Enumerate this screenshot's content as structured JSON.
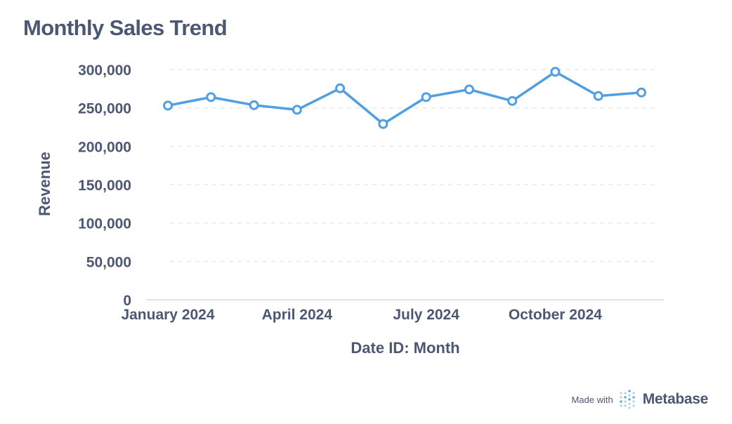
{
  "title": "Monthly Sales Trend",
  "chart_data": {
    "type": "line",
    "title": "Monthly Sales Trend",
    "xlabel": "Date ID: Month",
    "ylabel": "Revenue",
    "x": [
      "2024-01",
      "2024-02",
      "2024-03",
      "2024-04",
      "2024-05",
      "2024-06",
      "2024-07",
      "2024-08",
      "2024-09",
      "2024-10",
      "2024-11",
      "2024-12"
    ],
    "x_tick_labels": [
      {
        "x": "2024-01",
        "label": "January 2024"
      },
      {
        "x": "2024-04",
        "label": "April 2024"
      },
      {
        "x": "2024-07",
        "label": "July 2024"
      },
      {
        "x": "2024-10",
        "label": "October 2024"
      }
    ],
    "series": [
      {
        "values": [
          253000,
          264000,
          253500,
          247500,
          275500,
          229000,
          264000,
          274000,
          259000,
          297000,
          265500,
          270000
        ],
        "color": "#509ee3"
      }
    ],
    "ylim": [
      0,
      300000
    ],
    "y_ticks": [
      0,
      50000,
      100000,
      150000,
      200000,
      250000,
      300000
    ],
    "y_tick_labels": [
      "0",
      "50,000",
      "100,000",
      "150,000",
      "200,000",
      "250,000",
      "300,000"
    ],
    "grid": true,
    "legend": "none"
  },
  "footer": {
    "made_with": "Made with",
    "brand": "Metabase",
    "logo_icon": "metabase-logo-icon",
    "logo_color": "#509ee3"
  },
  "colors": {
    "text": "#4c5773",
    "grid": "#e6e8ec",
    "axis": "#e0e3e8",
    "line": "#509ee3"
  }
}
